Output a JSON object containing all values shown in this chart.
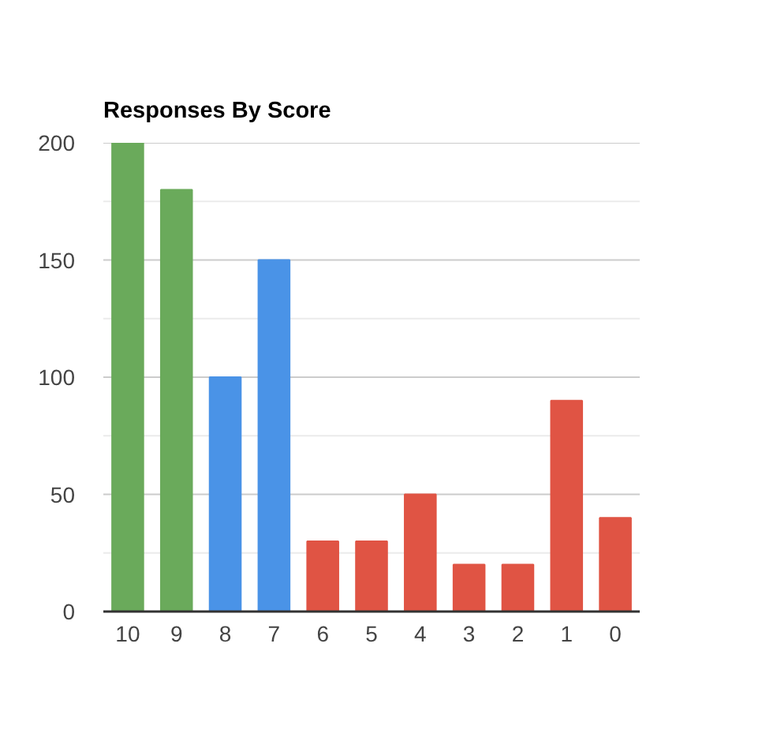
{
  "chart_data": {
    "type": "bar",
    "title": "Responses By Score",
    "categories": [
      "10",
      "9",
      "8",
      "7",
      "6",
      "5",
      "4",
      "3",
      "2",
      "1",
      "0"
    ],
    "values": [
      200,
      180,
      100,
      150,
      30,
      30,
      50,
      20,
      20,
      90,
      40
    ],
    "colors": [
      "#6aaa5b",
      "#6aaa5b",
      "#4a93e7",
      "#4a93e7",
      "#e05444",
      "#e05444",
      "#e05444",
      "#e05444",
      "#e05444",
      "#e05444",
      "#e05444"
    ],
    "ylim": [
      0,
      200
    ],
    "yticks": [
      0,
      {
        "value": 25,
        "label": null
      },
      50,
      {
        "value": 75,
        "label": null
      },
      100,
      {
        "value": 125,
        "label": null
      },
      150,
      {
        "value": 175,
        "label": null
      },
      200
    ],
    "grid": "y"
  }
}
